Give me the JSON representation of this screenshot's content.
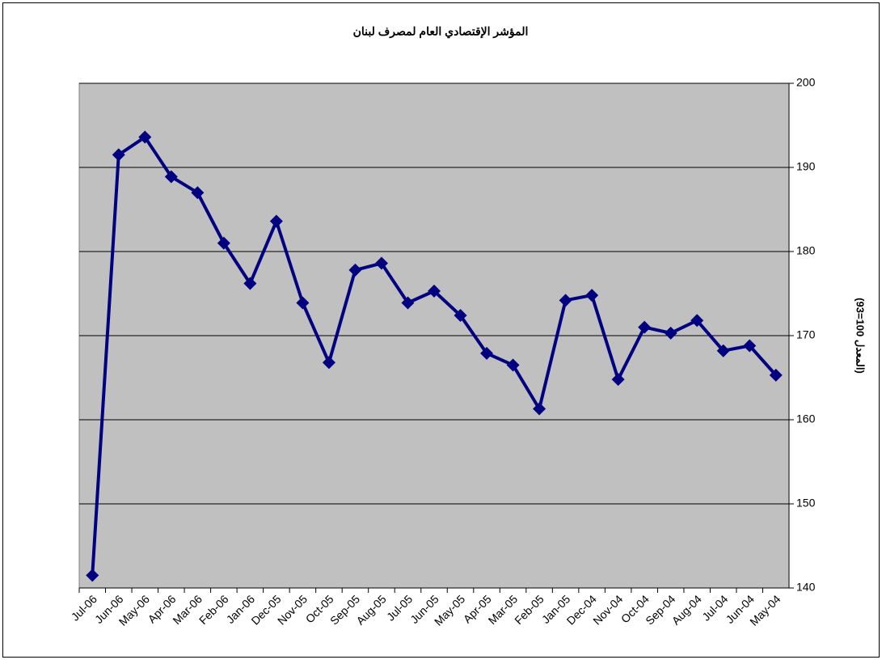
{
  "chart_data": {
    "type": "line",
    "title": "المؤشر الإقتصادي العام لمصرف لبنان",
    "y_axis_label": "(المعدل 100=93)",
    "categories": [
      "Jul-06",
      "Jun-06",
      "May-06",
      "Apr-06",
      "Mar-06",
      "Feb-06",
      "Jan-06",
      "Dec-05",
      "Nov-05",
      "Oct-05",
      "Sep-05",
      "Aug-05",
      "Jul-05",
      "Jun-05",
      "May-05",
      "Apr-05",
      "Mar-05",
      "Feb-05",
      "Jan-05",
      "Dec-04",
      "Nov-04",
      "Oct-04",
      "Sep-04",
      "Aug-04",
      "Jul-04",
      "Jun-04",
      "May-04"
    ],
    "series": [
      {
        "color": "#000080",
        "values": [
          141.5,
          191.5,
          193.6,
          188.9,
          187.0,
          181.0,
          176.2,
          183.6,
          173.9,
          166.8,
          177.8,
          178.6,
          173.9,
          175.3,
          172.4,
          167.9,
          166.5,
          161.3,
          174.2,
          174.8,
          164.8,
          171.0,
          170.3,
          171.8,
          168.2,
          168.8,
          165.3
        ]
      }
    ],
    "ylim": [
      140,
      200
    ],
    "yticks": [
      140,
      150,
      160,
      170,
      180,
      190,
      200
    ],
    "grid": true,
    "y_axis_side": "right",
    "plot_background": "#c0c0c0"
  }
}
